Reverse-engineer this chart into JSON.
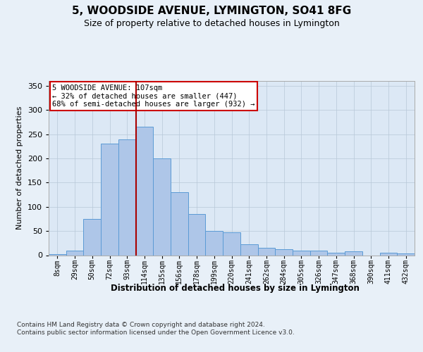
{
  "title": "5, WOODSIDE AVENUE, LYMINGTON, SO41 8FG",
  "subtitle": "Size of property relative to detached houses in Lymington",
  "xlabel": "Distribution of detached houses by size in Lymington",
  "ylabel": "Number of detached properties",
  "categories": [
    "8sqm",
    "29sqm",
    "50sqm",
    "72sqm",
    "93sqm",
    "114sqm",
    "135sqm",
    "156sqm",
    "178sqm",
    "199sqm",
    "220sqm",
    "241sqm",
    "262sqm",
    "284sqm",
    "305sqm",
    "326sqm",
    "347sqm",
    "368sqm",
    "390sqm",
    "411sqm",
    "432sqm"
  ],
  "values": [
    2,
    10,
    75,
    230,
    240,
    265,
    200,
    130,
    85,
    50,
    47,
    22,
    15,
    13,
    10,
    10,
    5,
    8,
    0,
    5,
    3
  ],
  "bar_color": "#aec6e8",
  "bar_edge_color": "#5b9bd5",
  "vline_color": "#aa0000",
  "annotation_text": "5 WOODSIDE AVENUE: 107sqm\n← 32% of detached houses are smaller (447)\n68% of semi-detached houses are larger (932) →",
  "annotation_box_color": "#ffffff",
  "annotation_box_edge": "#cc0000",
  "footer": "Contains HM Land Registry data © Crown copyright and database right 2024.\nContains public sector information licensed under the Open Government Licence v3.0.",
  "ylim": [
    0,
    360
  ],
  "yticks": [
    0,
    50,
    100,
    150,
    200,
    250,
    300,
    350
  ],
  "background_color": "#e8f0f8",
  "plot_background": "#dce8f5",
  "title_fontsize": 11,
  "subtitle_fontsize": 9
}
